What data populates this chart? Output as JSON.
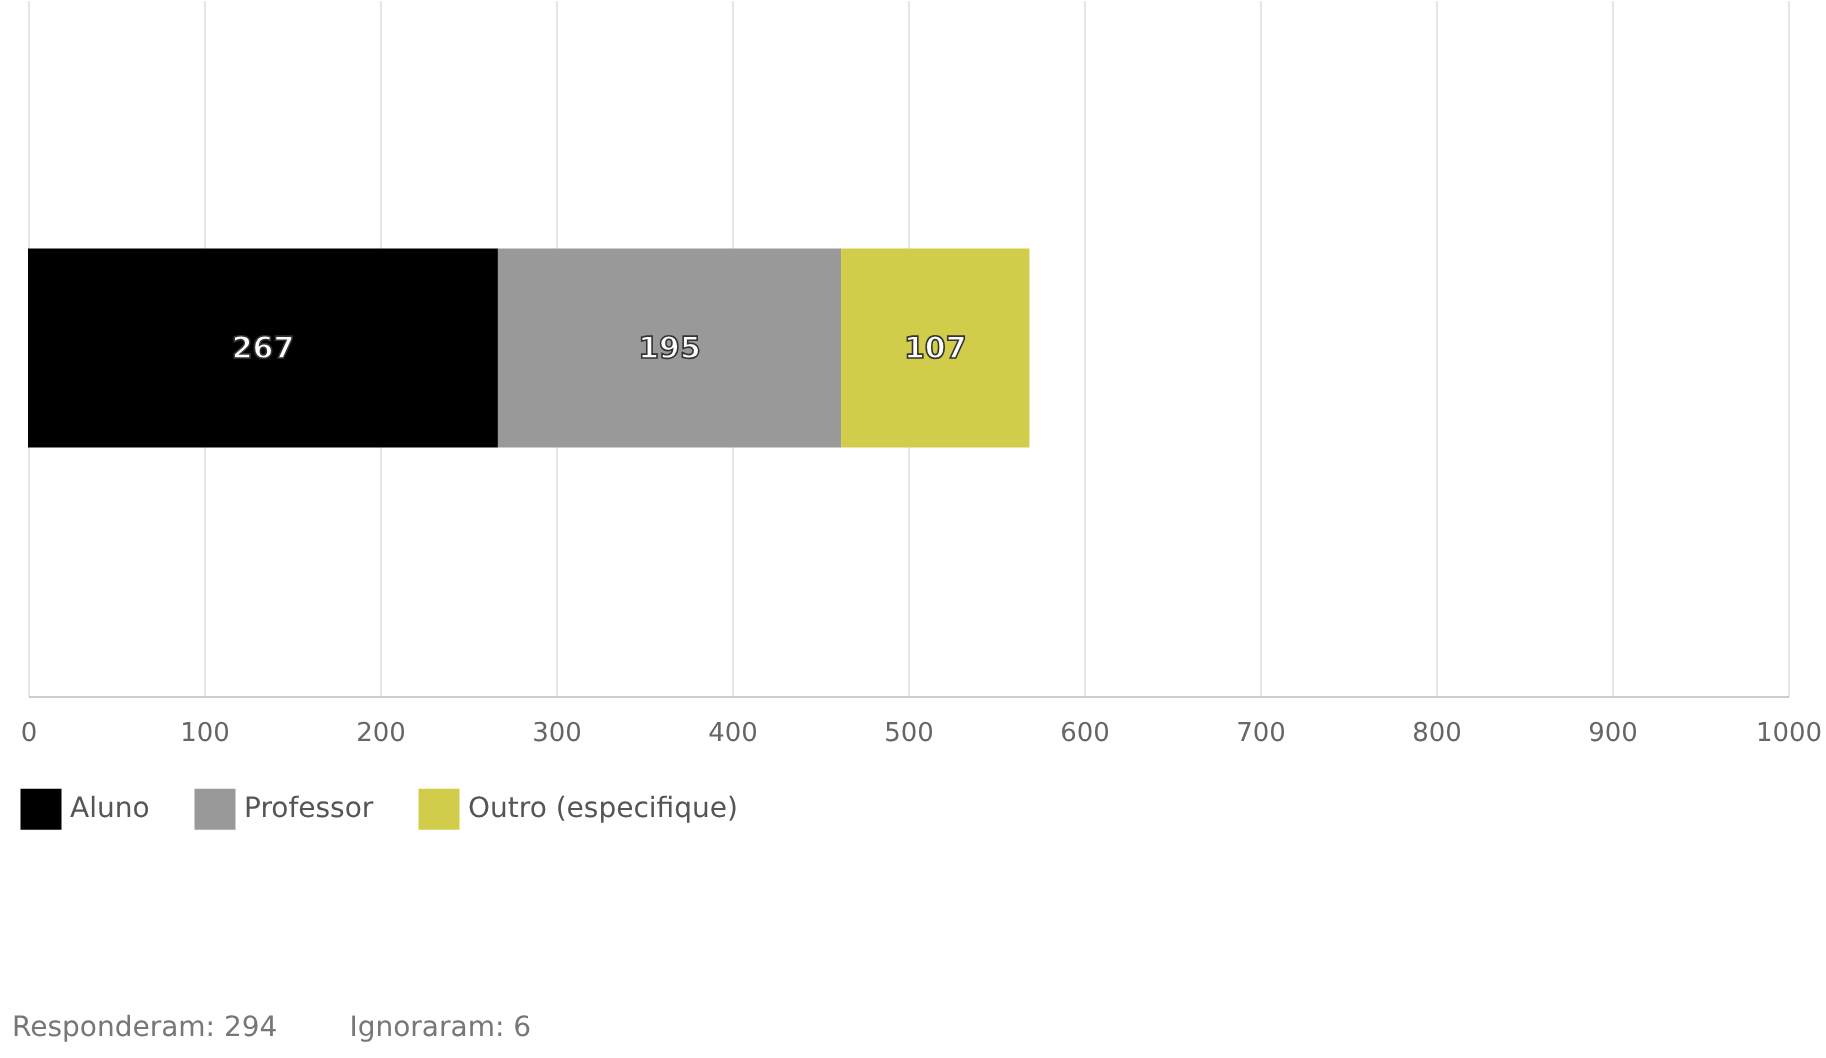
{
  "chart_data": {
    "type": "bar",
    "orientation": "horizontal",
    "stacked": true,
    "categories": [
      null
    ],
    "series": [
      {
        "name": "Aluno",
        "color": "#000000",
        "values": [
          267
        ]
      },
      {
        "name": "Professor",
        "color": "#999999",
        "values": [
          195
        ]
      },
      {
        "name": "Outro (especifique)",
        "color": "#d1cc4a",
        "values": [
          107
        ]
      }
    ],
    "xlim": [
      0,
      1000
    ],
    "xticks": [
      0,
      100,
      200,
      300,
      400,
      500,
      600,
      700,
      800,
      900,
      1000
    ],
    "grid": "x",
    "legend": "bottom",
    "data_labels": true,
    "annotations": [
      "Responderam: 294",
      "Ignoraram: 6"
    ]
  }
}
